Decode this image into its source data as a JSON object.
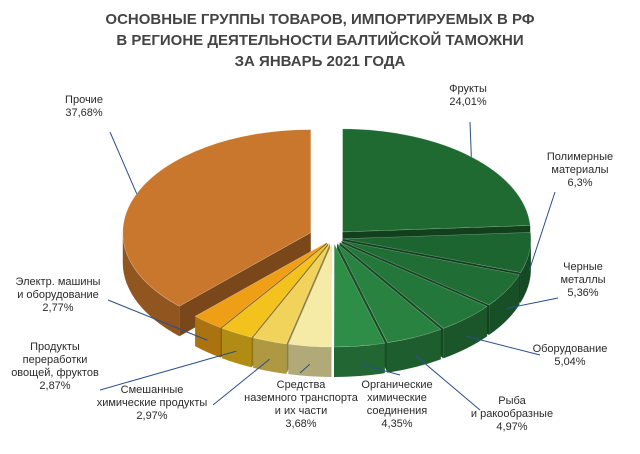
{
  "chart_data": {
    "type": "pie",
    "title_lines": [
      "ОСНОВНЫЕ ГРУППЫ ТОВАРОВ, ИМПОРТИРУЕМЫХ В РФ",
      "В РЕГИОНЕ ДЕЯТЕЛЬНОСТИ БАЛТИЙСКОЙ ТАМОЖНИ",
      "ЗА ЯНВАРЬ 2021 ГОДА"
    ],
    "slices": [
      {
        "label_lines": [
          "Фрукты"
        ],
        "value": 24.01,
        "value_label": "24,01%",
        "color": "#1e6a31"
      },
      {
        "label_lines": [
          "Полимерные",
          "материалы"
        ],
        "value": 6.3,
        "value_label": "6,3%",
        "color": "#1c6530"
      },
      {
        "label_lines": [
          "Черные",
          "металлы"
        ],
        "value": 5.36,
        "value_label": "5,36%",
        "color": "#206e35"
      },
      {
        "label_lines": [
          "Оборудование"
        ],
        "value": 5.04,
        "value_label": "5,04%",
        "color": "#24773a"
      },
      {
        "label_lines": [
          "Рыба",
          "и ракообразные"
        ],
        "value": 4.97,
        "value_label": "4,97%",
        "color": "#298240"
      },
      {
        "label_lines": [
          "Органические",
          "химические",
          "соединения"
        ],
        "value": 4.35,
        "value_label": "4,35%",
        "color": "#2e8d47"
      },
      {
        "label_lines": [
          "Средства",
          "наземного транспорта",
          "и их части"
        ],
        "value": 3.68,
        "value_label": "3,68%",
        "color": "#f6eba6"
      },
      {
        "label_lines": [
          "Смешанные",
          "химические продукты"
        ],
        "value": 2.97,
        "value_label": "2,97%",
        "color": "#f1d35c"
      },
      {
        "label_lines": [
          "Продукты",
          "переработки",
          "овощей, фруктов"
        ],
        "value": 2.87,
        "value_label": "2,87%",
        "color": "#f4c21c"
      },
      {
        "label_lines": [
          "Электр. машины",
          "и оборудование"
        ],
        "value": 2.77,
        "value_label": "2,77%",
        "color": "#ee9f16"
      },
      {
        "label_lines": [
          "Прочие"
        ],
        "value": 37.68,
        "value_label": "37,68%",
        "color": "#c9772c"
      }
    ]
  }
}
